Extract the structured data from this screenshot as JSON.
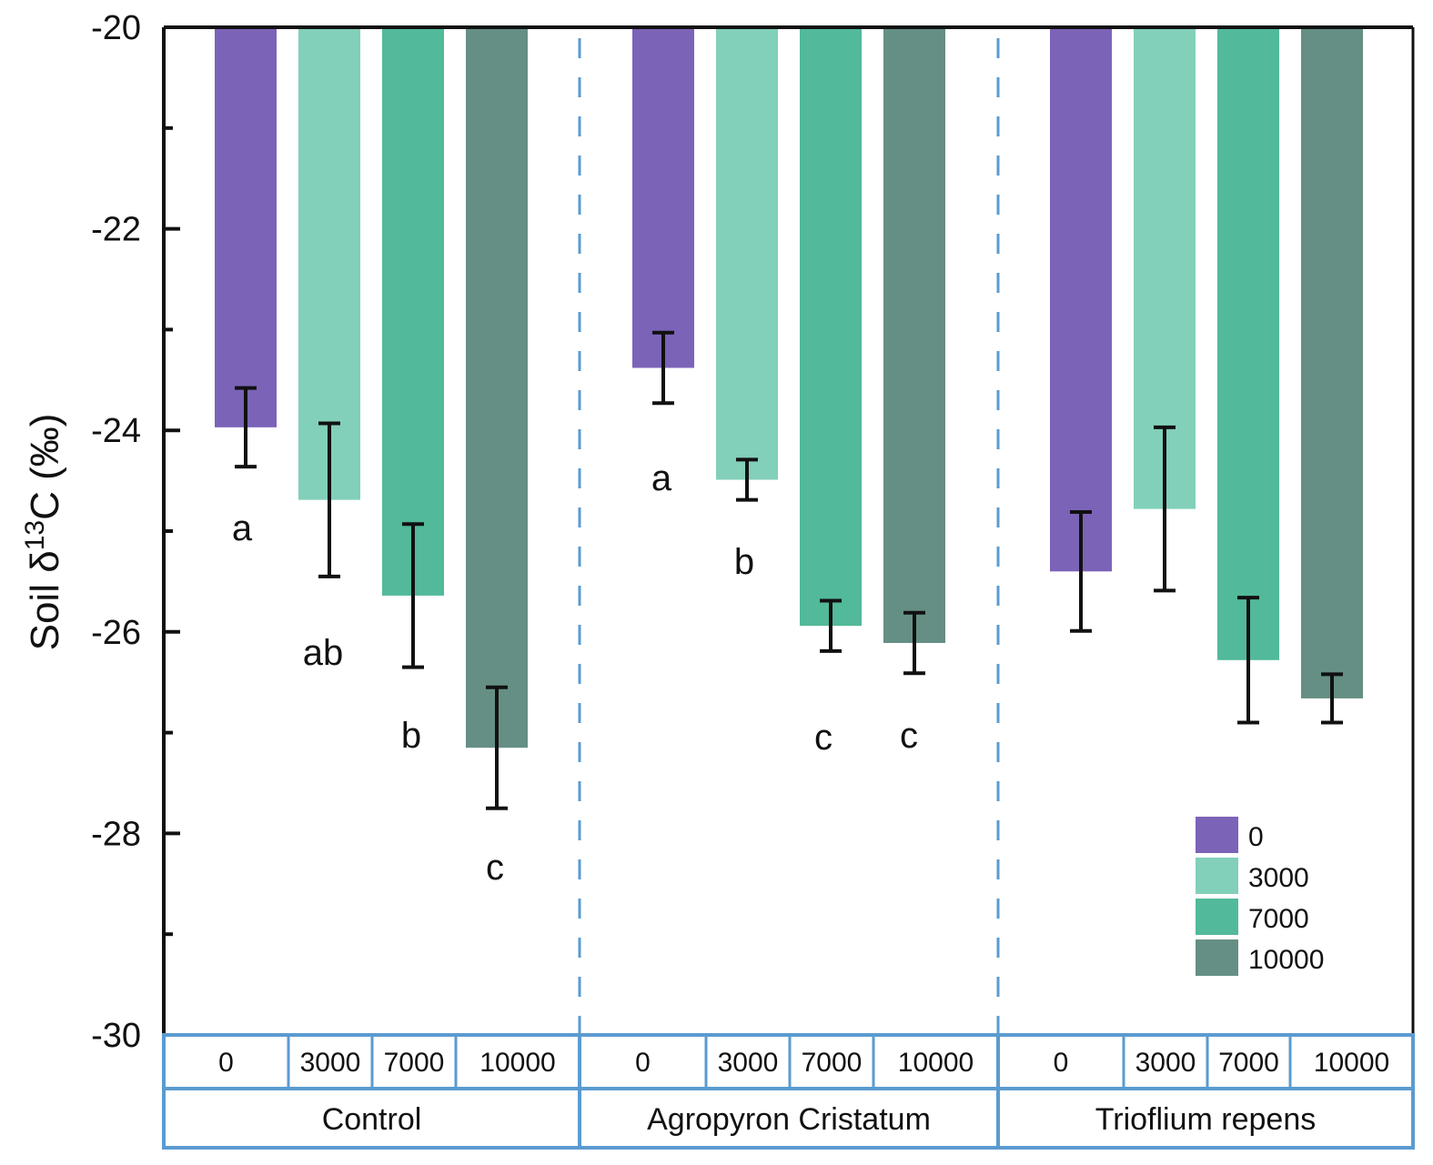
{
  "chart_data": {
    "type": "bar",
    "title": "",
    "xlabel": "",
    "ylabel": "Soil δ13C (‰)",
    "ylabel_parts": {
      "prefix": "Soil δ",
      "superscript": "13",
      "suffix": "C (‰)"
    },
    "ylim": [
      -30,
      -20
    ],
    "yticks": [
      -20,
      -22,
      -24,
      -26,
      -28,
      -30
    ],
    "yminor_ticks": [
      -21,
      -23,
      -25,
      -27,
      -29
    ],
    "grid": false,
    "bars_hang_from": -20,
    "groups": [
      {
        "name": "Control",
        "categories": [
          "0",
          "3000",
          "7000",
          "10000"
        ],
        "values": [
          -23.97,
          -24.69,
          -25.64,
          -27.15
        ],
        "errors": [
          0.39,
          0.76,
          0.71,
          0.6
        ],
        "significance": [
          "a",
          "ab",
          "b",
          "c"
        ]
      },
      {
        "name": "Agropyron Cristatum",
        "categories": [
          "0",
          "3000",
          "7000",
          "10000"
        ],
        "values": [
          -23.38,
          -24.49,
          -25.94,
          -26.11
        ],
        "errors": [
          0.35,
          0.2,
          0.25,
          0.3
        ],
        "significance": [
          "a",
          "b",
          "c",
          "c"
        ]
      },
      {
        "name": "Trioflium repens",
        "categories": [
          "0",
          "3000",
          "7000",
          "10000"
        ],
        "values": [
          -25.4,
          -24.78,
          -26.28,
          -26.66
        ],
        "errors": [
          0.59,
          0.81,
          0.62,
          0.24
        ],
        "significance": [
          "",
          "",
          "",
          ""
        ]
      }
    ],
    "series": [
      {
        "name": "0",
        "color": "#7b63b8"
      },
      {
        "name": "3000",
        "color": "#82cfba"
      },
      {
        "name": "7000",
        "color": "#52b99a"
      },
      {
        "name": "10000",
        "color": "#658f84"
      }
    ],
    "legend": {
      "position": "bottom-right",
      "entries": [
        "0",
        "3000",
        "7000",
        "10000"
      ]
    },
    "separator_color": "#5b9bd0",
    "table_border_color": "#5b9bd0"
  }
}
